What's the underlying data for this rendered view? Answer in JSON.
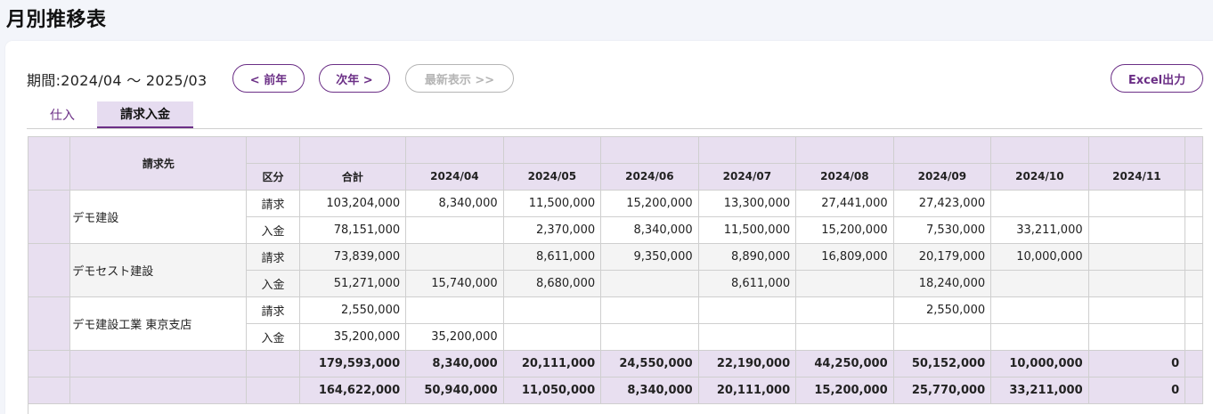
{
  "page_title": "月別推移表",
  "period_label": "期間:2024/04 ～ 2025/03",
  "buttons": {
    "prev_year": "< 前年",
    "next_year": "次年 >",
    "latest": "最新表示 >>",
    "excel": "Excel出力"
  },
  "tabs": [
    {
      "label": "仕入",
      "active": false
    },
    {
      "label": "請求入金",
      "active": true
    }
  ],
  "table": {
    "header_customer": "請求先",
    "header_kubun": "区分",
    "header_total": "合計",
    "months": [
      "2024/04",
      "2024/05",
      "2024/06",
      "2024/07",
      "2024/08",
      "2024/09",
      "2024/10",
      "2024/11"
    ],
    "groups": [
      {
        "name": "デモ建設",
        "rows": [
          {
            "kubun": "請求",
            "total": "103,204,000",
            "values": [
              "8,340,000",
              "11,500,000",
              "15,200,000",
              "13,300,000",
              "27,441,000",
              "27,423,000",
              "",
              ""
            ]
          },
          {
            "kubun": "入金",
            "total": "78,151,000",
            "values": [
              "",
              "2,370,000",
              "8,340,000",
              "11,500,000",
              "15,200,000",
              "7,530,000",
              "33,211,000",
              ""
            ]
          }
        ]
      },
      {
        "name": "デモセスト建設",
        "rows": [
          {
            "kubun": "請求",
            "total": "73,839,000",
            "values": [
              "",
              "8,611,000",
              "9,350,000",
              "8,890,000",
              "16,809,000",
              "20,179,000",
              "10,000,000",
              ""
            ]
          },
          {
            "kubun": "入金",
            "total": "51,271,000",
            "values": [
              "15,740,000",
              "8,680,000",
              "",
              "8,611,000",
              "",
              "18,240,000",
              "",
              ""
            ]
          }
        ]
      },
      {
        "name": "デモ建設工業 東京支店",
        "rows": [
          {
            "kubun": "請求",
            "total": "2,550,000",
            "values": [
              "",
              "",
              "",
              "",
              "",
              "2,550,000",
              "",
              ""
            ]
          },
          {
            "kubun": "入金",
            "total": "35,200,000",
            "values": [
              "35,200,000",
              "",
              "",
              "",
              "",
              "",
              "",
              ""
            ]
          }
        ]
      }
    ],
    "totals": [
      {
        "total": "179,593,000",
        "values": [
          "8,340,000",
          "20,111,000",
          "24,550,000",
          "22,190,000",
          "44,250,000",
          "50,152,000",
          "10,000,000",
          "0"
        ]
      },
      {
        "total": "164,622,000",
        "values": [
          "50,940,000",
          "11,050,000",
          "8,340,000",
          "20,111,000",
          "15,200,000",
          "25,770,000",
          "33,211,000",
          "0"
        ]
      }
    ]
  }
}
